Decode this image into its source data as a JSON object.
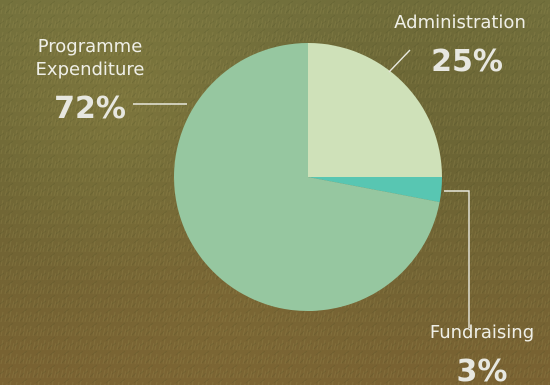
{
  "chart_data": {
    "type": "pie",
    "slices": [
      {
        "name_lines": [
          "Administration"
        ],
        "value": 25,
        "label": "25%",
        "color": "#cfe1b9"
      },
      {
        "name_lines": [
          "Fundraising"
        ],
        "value": 3,
        "label": "3%",
        "color": "#58c6b2"
      },
      {
        "name_lines": [
          "Programme",
          "Expenditure"
        ],
        "value": 72,
        "label": "72%",
        "color": "#96c7a0"
      }
    ]
  },
  "colors": {
    "background_grass": "#6f6033",
    "label_text": "#efefe7"
  }
}
